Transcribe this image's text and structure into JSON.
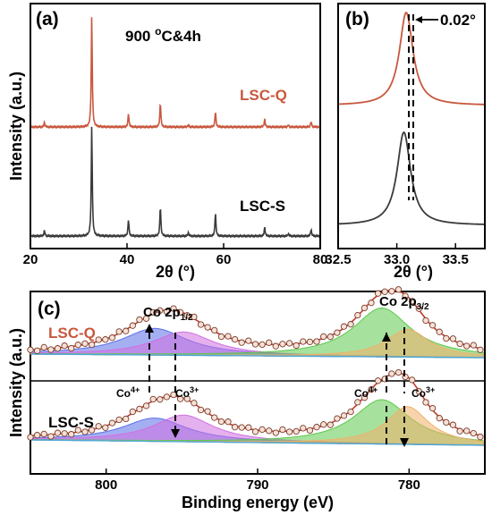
{
  "chart_data": [
    {
      "id": "a",
      "type": "line",
      "panel_label": "(a)",
      "annotation": "900 °C&4h",
      "xlabel": "2θ (°)",
      "ylabel": "Intensity (a.u.)",
      "xlim": [
        20,
        80
      ],
      "xticks": [
        20,
        40,
        60,
        80
      ],
      "peaks_x": [
        22.9,
        32.7,
        40.3,
        46.9,
        52.7,
        58.3,
        68.5,
        73.4,
        78.1
      ],
      "series": [
        {
          "name": "LSC-Q",
          "color": "#c8583e",
          "offset": 0.55,
          "peaks_y": [
            0.04,
            1.0,
            0.12,
            0.22,
            0.02,
            0.14,
            0.07,
            0.02,
            0.05
          ]
        },
        {
          "name": "LSC-S",
          "color": "#3a3a3a",
          "offset": 0.0,
          "peaks_y": [
            0.05,
            1.0,
            0.15,
            0.27,
            0.03,
            0.21,
            0.08,
            0.02,
            0.06
          ]
        }
      ]
    },
    {
      "id": "b",
      "type": "line",
      "panel_label": "(b)",
      "annotation": "0.02°",
      "xlabel": "2θ (°)",
      "xlim": [
        32.5,
        33.75
      ],
      "xticks": [
        32.5,
        33.0,
        33.5
      ],
      "xtick_labels": [
        "32.5",
        "33.0",
        "33.5"
      ],
      "peak_positions": [
        33.08,
        33.06
      ],
      "series": [
        {
          "name": "LSC-Q",
          "color": "#c8583e",
          "center": 33.08,
          "width": 0.07,
          "offset": 0.52
        },
        {
          "name": "LSC-S",
          "color": "#3a3a3a",
          "center": 33.06,
          "width": 0.07,
          "offset": 0.0
        }
      ]
    },
    {
      "id": "c",
      "type": "line",
      "panel_label": "(c)",
      "xlabel": "Binding energy (eV)",
      "ylabel": "Intensity (a.u.)",
      "xlim": [
        805,
        775
      ],
      "xticks": [
        800,
        790,
        780
      ],
      "peak_labels": {
        "co2p12": "Co 2p",
        "co2p12_sub": "1/2",
        "co2p32": "Co 2p",
        "co2p32_sub": "3/2",
        "co4": "Co",
        "co4_sup": "4+",
        "co3": "Co",
        "co3_sup": "3+"
      },
      "sample_labels": [
        "LSC-Q",
        "LSC-S"
      ],
      "peak_positions": {
        "co4_2p12": 796.8,
        "co3_2p12": 794.9,
        "co4_2p32": 781.8,
        "co3_2p32": 780.1
      },
      "components": [
        {
          "name": "Co4+ 2p1/2",
          "color": "#5a6ee8",
          "center": 796.8
        },
        {
          "name": "Co3+ 2p1/2",
          "color": "#d070e0",
          "center": 794.9
        },
        {
          "name": "Co4+ 2p3/2",
          "color": "#5cc84c",
          "center": 781.8
        },
        {
          "name": "Co3+ 2p3/2",
          "color": "#f2b06a",
          "center": 780.1
        }
      ]
    }
  ]
}
